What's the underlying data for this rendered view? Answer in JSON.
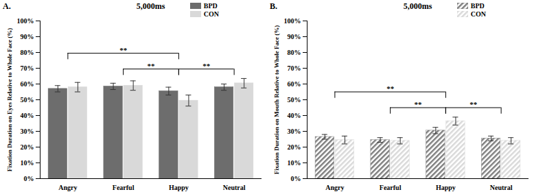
{
  "chart_data": [
    {
      "type": "bar",
      "panel_label": "A.",
      "title": "5,000ms",
      "ylabel": "Fixation Duration on Eyes Relative to Whole Face (%)",
      "categories": [
        "Angry",
        "Fearful",
        "Happy",
        "Neutral"
      ],
      "series": [
        {
          "name": "BPD",
          "color": "#6d6d6d",
          "values": [
            57,
            58.5,
            55.5,
            58
          ],
          "errors": [
            2,
            2,
            2.5,
            2
          ]
        },
        {
          "name": "CON",
          "color": "#d9d9d9",
          "values": [
            58,
            59,
            49.5,
            60.5
          ],
          "errors": [
            3,
            3,
            3.5,
            3
          ]
        }
      ],
      "ylim": [
        0,
        100
      ],
      "yticks": [
        {
          "value": 0,
          "label": "0%"
        },
        {
          "value": 10,
          "label": "10%"
        },
        {
          "value": 20,
          "label": "20%"
        },
        {
          "value": 30,
          "label": "30%"
        },
        {
          "value": 40,
          "label": "40%"
        },
        {
          "value": 50,
          "label": "50%"
        },
        {
          "value": 60,
          "label": "60%"
        },
        {
          "value": 70,
          "label": "70%"
        },
        {
          "value": 80,
          "label": "80%"
        },
        {
          "value": 90,
          "label": "90%"
        },
        {
          "value": 100,
          "label": "100%"
        }
      ],
      "annotations": [
        {
          "text": "**",
          "from": "Angry",
          "to": "Happy"
        },
        {
          "text": "**",
          "from": "Fearful",
          "to": "Happy"
        },
        {
          "text": "**",
          "from": "Happy",
          "to": "Neutral"
        }
      ],
      "legend": "top-right",
      "grid": false
    },
    {
      "type": "bar",
      "panel_label": "B.",
      "title": "5,000ms",
      "ylabel": "Fixation Duration on Mouth Relative to Whole Face (%)",
      "categories": [
        "Angry",
        "Fearful",
        "Happy",
        "Neutral"
      ],
      "series": [
        {
          "name": "BPD",
          "color": "#7f7f7f",
          "values": [
            26.5,
            24.5,
            30.5,
            25.5
          ],
          "errors": [
            1.5,
            1.5,
            2,
            1.5
          ]
        },
        {
          "name": "CON",
          "color": "#d9d9d9",
          "values": [
            24.5,
            24,
            36.5,
            24
          ],
          "errors": [
            2.5,
            2,
            2.5,
            2
          ]
        }
      ],
      "ylim": [
        0,
        100
      ],
      "yticks": [
        {
          "value": 0,
          "label": "0%"
        },
        {
          "value": 10,
          "label": "10%"
        },
        {
          "value": 20,
          "label": "20%"
        },
        {
          "value": 30,
          "label": "30%"
        },
        {
          "value": 40,
          "label": "40%"
        },
        {
          "value": 50,
          "label": "50%"
        },
        {
          "value": 60,
          "label": "60%"
        },
        {
          "value": 70,
          "label": "70%"
        },
        {
          "value": 80,
          "label": "80%"
        },
        {
          "value": 90,
          "label": "90%"
        },
        {
          "value": 100,
          "label": "100%"
        }
      ],
      "annotations": [
        {
          "text": "**",
          "from": "Angry",
          "to": "Happy"
        },
        {
          "text": "**",
          "from": "Fearful",
          "to": "Happy"
        },
        {
          "text": "**",
          "from": "Happy",
          "to": "Neutral"
        }
      ],
      "legend": "top-right",
      "grid": false
    }
  ]
}
